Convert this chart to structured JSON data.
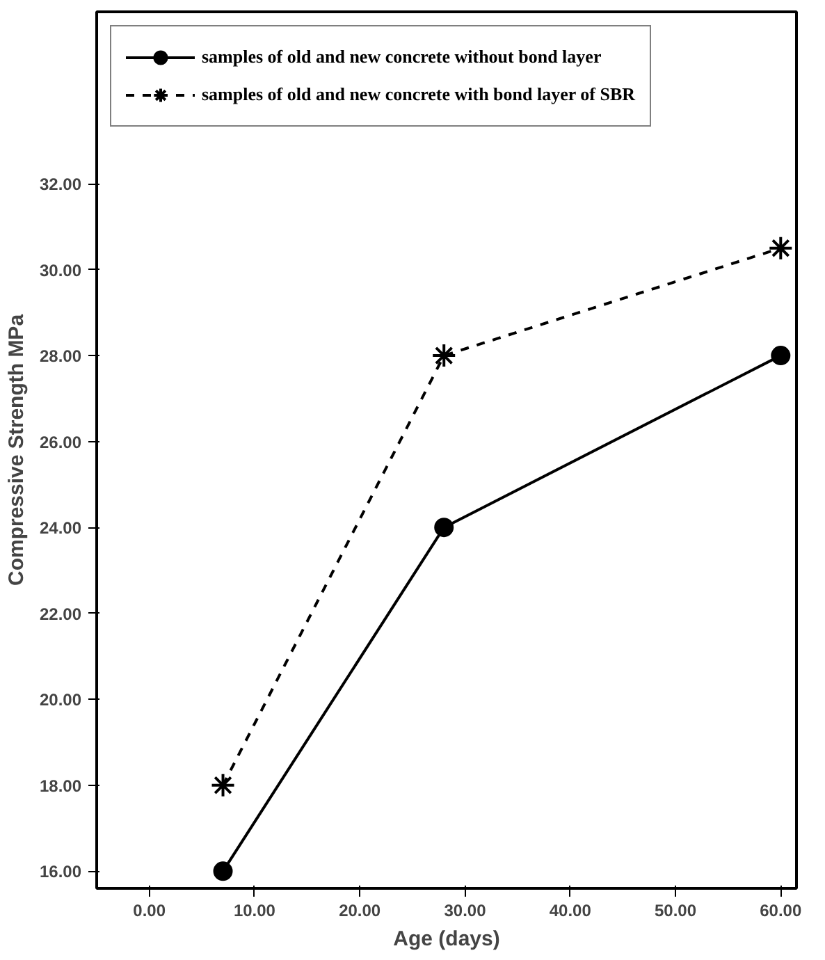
{
  "chart_data": {
    "type": "line",
    "xlabel": "Age (days)",
    "ylabel": "Compressive Strength MPa",
    "x": [
      7,
      28,
      60
    ],
    "series": [
      {
        "name": "samples of old and new concrete without bond layer",
        "color": "#000000",
        "values": [
          16,
          24,
          28
        ],
        "marker": "circle",
        "line_style": "solid"
      },
      {
        "name": "samples of old and new concrete with bond layer of SBR",
        "color": "#000000",
        "values": [
          18,
          28,
          30.5
        ],
        "marker": "cross",
        "line_style": "dashed"
      }
    ],
    "xlim": [
      -5,
      61.5
    ],
    "ylim": [
      15.6,
      36
    ],
    "xticks": [
      {
        "value": 0,
        "label": "0.00"
      },
      {
        "value": 10,
        "label": "10.00"
      },
      {
        "value": 20,
        "label": "20.00"
      },
      {
        "value": 30,
        "label": "30.00"
      },
      {
        "value": 40,
        "label": "40.00"
      },
      {
        "value": 50,
        "label": "50.00"
      },
      {
        "value": 60,
        "label": "60.00"
      }
    ],
    "yticks": [
      {
        "value": 16,
        "label": "16.00"
      },
      {
        "value": 18,
        "label": "18.00"
      },
      {
        "value": 20,
        "label": "20.00"
      },
      {
        "value": 22,
        "label": "22.00"
      },
      {
        "value": 24,
        "label": "24.00"
      },
      {
        "value": 26,
        "label": "26.00"
      },
      {
        "value": 28,
        "label": "28.00"
      },
      {
        "value": 30,
        "label": "30.00"
      },
      {
        "value": 32,
        "label": "32.00"
      }
    ],
    "grid": false,
    "legend": "top left"
  }
}
